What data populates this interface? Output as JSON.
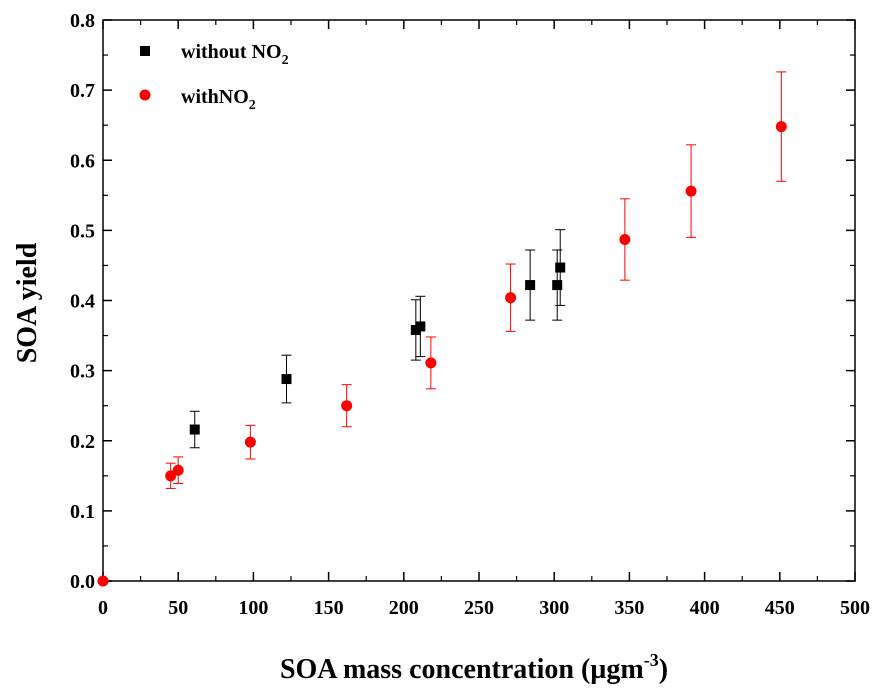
{
  "chart_data": {
    "type": "scatter",
    "title": "",
    "xlabel_main": "SOA mass concentration (µgm",
    "xlabel_sup": "-3",
    "xlabel_close": ")",
    "ylabel": "SOA yield",
    "xlim": [
      0,
      500
    ],
    "ylim": [
      0.0,
      0.8
    ],
    "x_ticks": [
      0,
      50,
      100,
      150,
      200,
      250,
      300,
      350,
      400,
      450,
      500
    ],
    "x_tick_labels": [
      "0",
      "50",
      "100",
      "150",
      "200",
      "250",
      "300",
      "350",
      "400",
      "450",
      "500"
    ],
    "y_ticks": [
      0.0,
      0.1,
      0.2,
      0.3,
      0.4,
      0.5,
      0.6,
      0.7,
      0.8
    ],
    "y_tick_labels": [
      "0.0",
      "0.1",
      "0.2",
      "0.3",
      "0.4",
      "0.5",
      "0.6",
      "0.7",
      "0.8"
    ],
    "grid": false,
    "legend_position": "top-left",
    "series": [
      {
        "name_main": "without NO",
        "name_sub": "2",
        "marker": "square",
        "color": "#000000",
        "points": [
          {
            "x": 61,
            "y": 0.216,
            "err": 0.026
          },
          {
            "x": 122,
            "y": 0.288,
            "err": 0.034
          },
          {
            "x": 208,
            "y": 0.358,
            "err": 0.043
          },
          {
            "x": 211,
            "y": 0.363,
            "err": 0.043
          },
          {
            "x": 284,
            "y": 0.422,
            "err": 0.05
          },
          {
            "x": 302,
            "y": 0.422,
            "err": 0.05
          },
          {
            "x": 304,
            "y": 0.447,
            "err": 0.054
          }
        ]
      },
      {
        "name_main": "withNO",
        "name_sub": "2",
        "marker": "circle",
        "color": "#ff0000",
        "points": [
          {
            "x": 0,
            "y": 0.0,
            "err": 0
          },
          {
            "x": 45,
            "y": 0.15,
            "err": 0.018
          },
          {
            "x": 50,
            "y": 0.158,
            "err": 0.019
          },
          {
            "x": 98,
            "y": 0.198,
            "err": 0.024
          },
          {
            "x": 162,
            "y": 0.25,
            "err": 0.03
          },
          {
            "x": 218,
            "y": 0.311,
            "err": 0.037
          },
          {
            "x": 271,
            "y": 0.404,
            "err": 0.048
          },
          {
            "x": 347,
            "y": 0.487,
            "err": 0.058
          },
          {
            "x": 391,
            "y": 0.556,
            "err": 0.066
          },
          {
            "x": 451,
            "y": 0.648,
            "err": 0.078
          }
        ]
      }
    ]
  }
}
